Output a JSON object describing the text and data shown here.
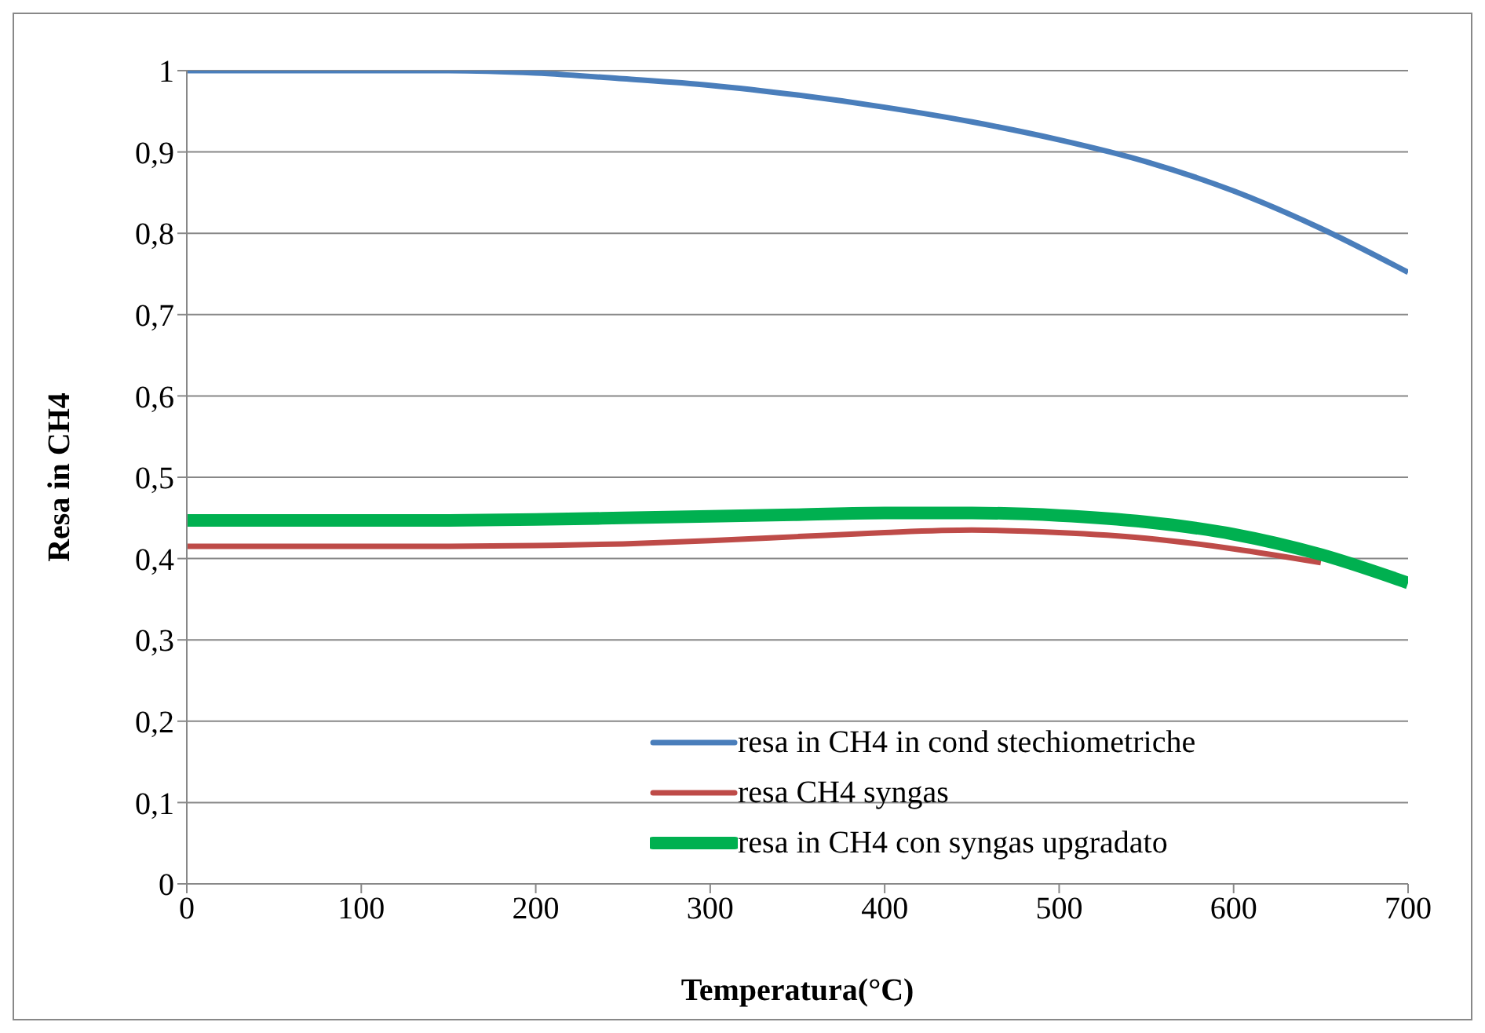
{
  "chart_data": {
    "type": "line",
    "xlabel": "Temperatura(°C)",
    "ylabel": "Resa in CH4",
    "x": [
      0,
      50,
      100,
      150,
      200,
      250,
      300,
      350,
      400,
      450,
      500,
      550,
      600,
      650,
      700
    ],
    "series": [
      {
        "name": "resa in CH4 in cond stechiometriche",
        "color": "#4a7ebb",
        "values": [
          1,
          1,
          1,
          1,
          0.997,
          0.99,
          0.982,
          0.97,
          0.955,
          0.937,
          0.915,
          0.888,
          0.852,
          0.806,
          0.752
        ]
      },
      {
        "name": "resa CH4 syngas",
        "color": "#be4b48",
        "values": [
          0.415,
          0.415,
          0.415,
          0.415,
          0.416,
          0.418,
          0.422,
          0.427,
          0.432,
          0.435,
          0.432,
          0.425,
          0.412,
          0.395,
          null
        ]
      },
      {
        "name": "resa in CH4 con syngas upgradato",
        "color": "#00b050",
        "values": [
          0.447,
          0.447,
          0.447,
          0.447,
          0.448,
          0.45,
          0.452,
          0.454,
          0.456,
          0.456,
          0.453,
          0.445,
          0.43,
          0.405,
          0.37
        ]
      }
    ],
    "xlim": [
      0,
      700
    ],
    "xticks": [
      0,
      100,
      200,
      300,
      400,
      500,
      600,
      700
    ],
    "ylim": [
      0,
      1
    ],
    "yticks": [
      0,
      {
        "value": 0.1,
        "label": "0,1"
      },
      {
        "value": 0.2,
        "label": "0,2"
      },
      {
        "value": 0.3,
        "label": "0,3"
      },
      {
        "value": 0.4,
        "label": "0,4"
      },
      {
        "value": 0.5,
        "label": "0,5"
      },
      {
        "value": 0.6,
        "label": "0,6"
      },
      {
        "value": 0.7,
        "label": "0,7"
      },
      {
        "value": 0.8,
        "label": "0,8"
      },
      {
        "value": 0.9,
        "label": "0,9"
      },
      1
    ],
    "grid": "y",
    "legend": "bottom right",
    "marker": "none"
  }
}
